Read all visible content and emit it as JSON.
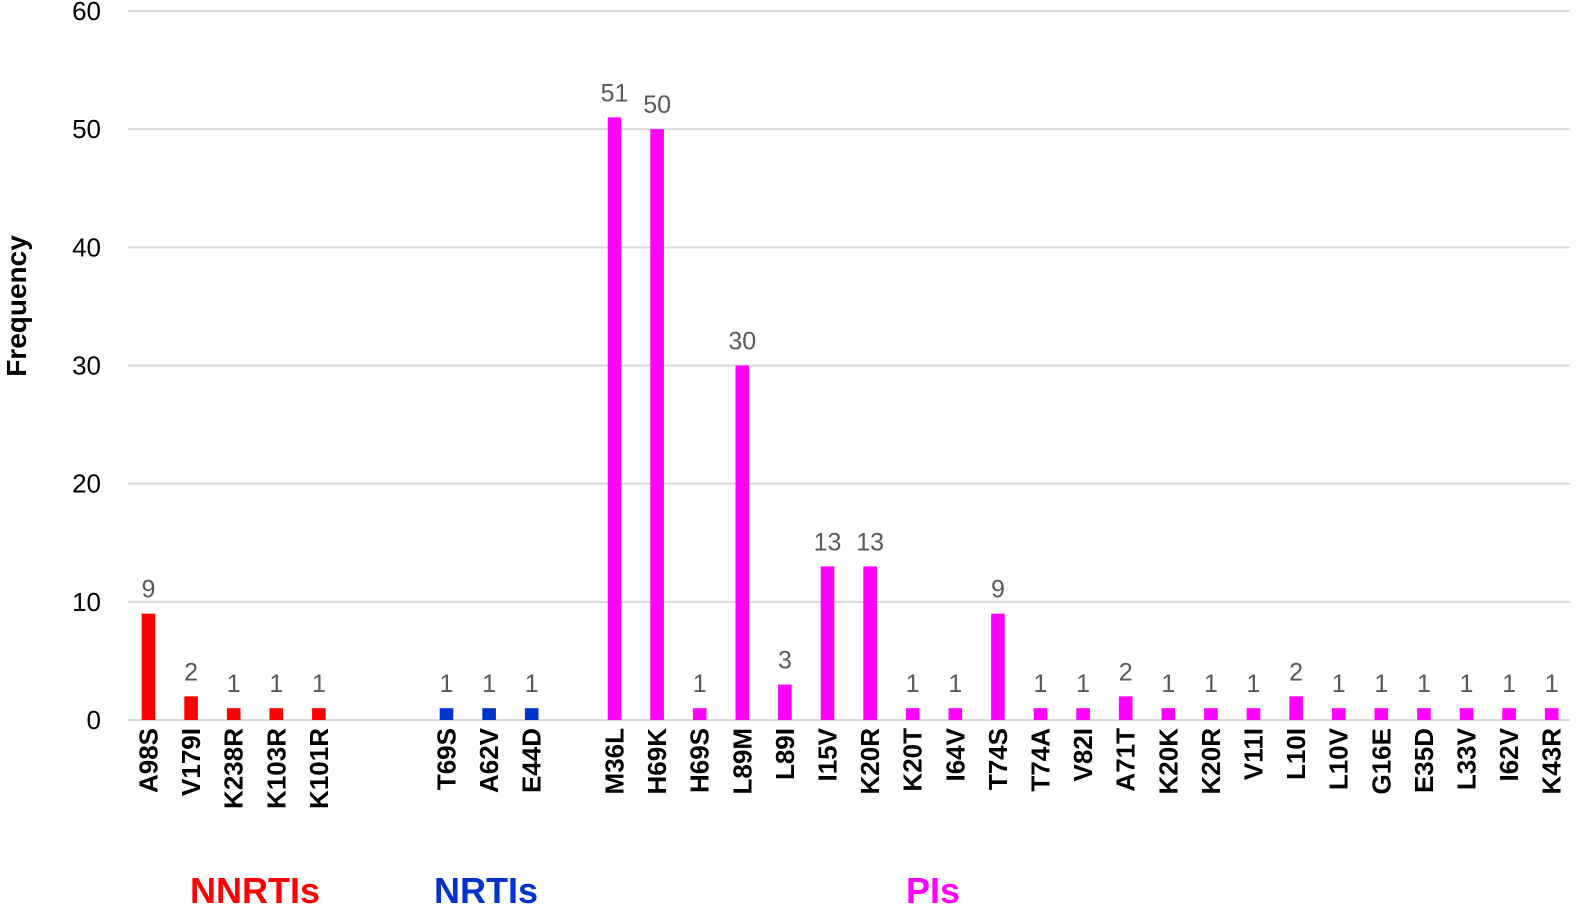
{
  "chart_data": {
    "type": "bar",
    "title": "",
    "xlabel": "",
    "ylabel": "Frequency",
    "ylim": [
      0,
      60
    ],
    "yticks": [
      0,
      10,
      20,
      30,
      40,
      50,
      60
    ],
    "grid": true,
    "legend": "none",
    "colors": {
      "NNRTIs": "#ff0000",
      "NRTIs": "#0033cc",
      "PIs": "#ff00ff"
    },
    "groups": [
      {
        "name": "NNRTIs",
        "color": "#ff0000",
        "categories": [
          "A98S",
          "V179I",
          "K238R",
          "K103R",
          "K101R"
        ],
        "values": [
          9,
          2,
          1,
          1,
          1
        ]
      },
      {
        "name": "NRTIs",
        "color": "#0033cc",
        "categories": [
          "T69S",
          "A62V",
          "E44D"
        ],
        "values": [
          1,
          1,
          1
        ]
      },
      {
        "name": "PIs",
        "color": "#ff00ff",
        "categories": [
          "M36L",
          "H69K",
          "H69S",
          "L89M",
          "L89I",
          "I15V",
          "K20R",
          "K20T",
          "I64V",
          "T74S",
          "T74A",
          "V82I",
          "A71T",
          "K20K",
          "K20R",
          "V11I",
          "L10I",
          "L10V",
          "G16E",
          "E35D",
          "L33V",
          "I62V",
          "K43R"
        ],
        "values": [
          51,
          50,
          1,
          30,
          3,
          13,
          13,
          1,
          1,
          9,
          1,
          1,
          2,
          1,
          1,
          1,
          2,
          1,
          1,
          1,
          1,
          1,
          1
        ]
      }
    ]
  }
}
